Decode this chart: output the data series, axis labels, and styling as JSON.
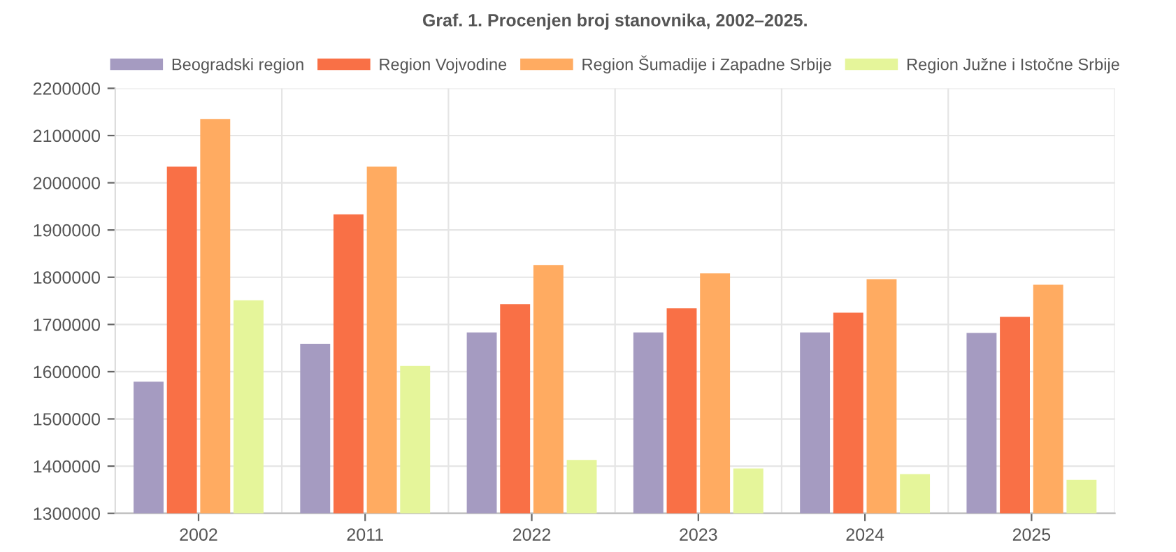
{
  "chart_data": {
    "type": "bar",
    "title": "Graf. 1. Procenjen broj stanovnika, 2002–2025.",
    "categories": [
      "2002",
      "2011",
      "2022",
      "2023",
      "2024",
      "2025"
    ],
    "series": [
      {
        "name": "Beogradski region",
        "color": "#a59bc1",
        "values": [
          1579000,
          1659000,
          1683000,
          1683000,
          1683000,
          1682000
        ]
      },
      {
        "name": "Region Vojvodine",
        "color": "#f97046",
        "values": [
          2034000,
          1933000,
          1743000,
          1734000,
          1725000,
          1716000
        ]
      },
      {
        "name": "Region Šumadije i Zapadne Srbije",
        "color": "#ffab61",
        "values": [
          2135000,
          2034000,
          1826000,
          1808000,
          1796000,
          1784000
        ]
      },
      {
        "name": "Region Južne i Istočne Srbije",
        "color": "#e5f59a",
        "values": [
          1751000,
          1612000,
          1413000,
          1395000,
          1383000,
          1371000
        ]
      }
    ],
    "ylim": [
      1300000,
      2200000
    ],
    "yticks": [
      1300000,
      1400000,
      1500000,
      1600000,
      1700000,
      1800000,
      1900000,
      2000000,
      2100000,
      2200000
    ],
    "grid": true,
    "legend": "top"
  }
}
